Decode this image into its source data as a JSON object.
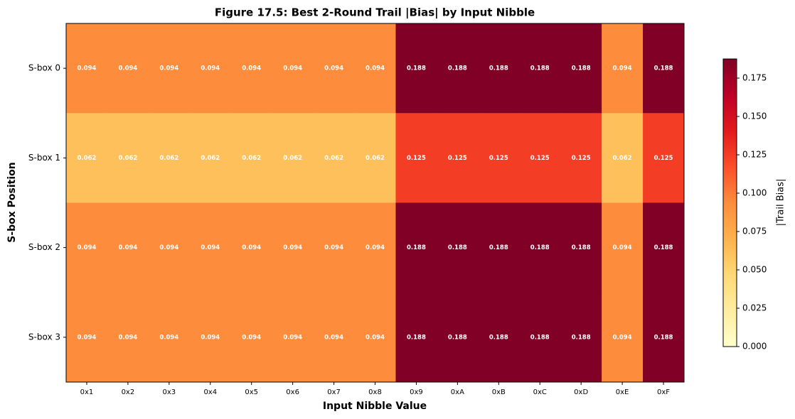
{
  "chart_data": {
    "type": "heatmap",
    "title": "Figure 17.5: Best 2-Round Trail |Bias| by Input Nibble",
    "x_label": "Input Nibble Value",
    "y_label": "S-box Position",
    "colorbar_label": "|Trail Bias|",
    "x_categories": [
      "0x1",
      "0x2",
      "0x3",
      "0x4",
      "0x5",
      "0x6",
      "0x7",
      "0x8",
      "0x9",
      "0xA",
      "0xB",
      "0xC",
      "0xD",
      "0xE",
      "0xF"
    ],
    "y_categories": [
      "S-box 0",
      "S-box 1",
      "S-box 2",
      "S-box 3"
    ],
    "values": [
      [
        0.094,
        0.094,
        0.094,
        0.094,
        0.094,
        0.094,
        0.094,
        0.094,
        0.188,
        0.188,
        0.188,
        0.188,
        0.188,
        0.094,
        0.188
      ],
      [
        0.062,
        0.062,
        0.062,
        0.062,
        0.062,
        0.062,
        0.062,
        0.062,
        0.125,
        0.125,
        0.125,
        0.125,
        0.125,
        0.062,
        0.125
      ],
      [
        0.094,
        0.094,
        0.094,
        0.094,
        0.094,
        0.094,
        0.094,
        0.094,
        0.188,
        0.188,
        0.188,
        0.188,
        0.188,
        0.094,
        0.188
      ],
      [
        0.094,
        0.094,
        0.094,
        0.094,
        0.094,
        0.094,
        0.094,
        0.094,
        0.188,
        0.188,
        0.188,
        0.188,
        0.188,
        0.094,
        0.188
      ]
    ],
    "clim": [
      0,
      0.1875
    ],
    "cticks": [
      {
        "value": 0,
        "label": "0.000"
      },
      {
        "value": 0.025,
        "label": "0.025"
      },
      {
        "value": 0.05,
        "label": "0.050"
      },
      {
        "value": 0.075,
        "label": "0.075"
      },
      {
        "value": 0.1,
        "label": "0.100"
      },
      {
        "value": 0.125,
        "label": "0.125"
      },
      {
        "value": 0.15,
        "label": "0.150"
      },
      {
        "value": 0.175,
        "label": "0.175"
      }
    ],
    "colormap": [
      "#ffffcc",
      "#ffeda0",
      "#fed976",
      "#feb24c",
      "#fd8d3c",
      "#fc4e2a",
      "#e31a1c",
      "#bd0026",
      "#800026"
    ],
    "annotation_color": "#ffffff"
  }
}
